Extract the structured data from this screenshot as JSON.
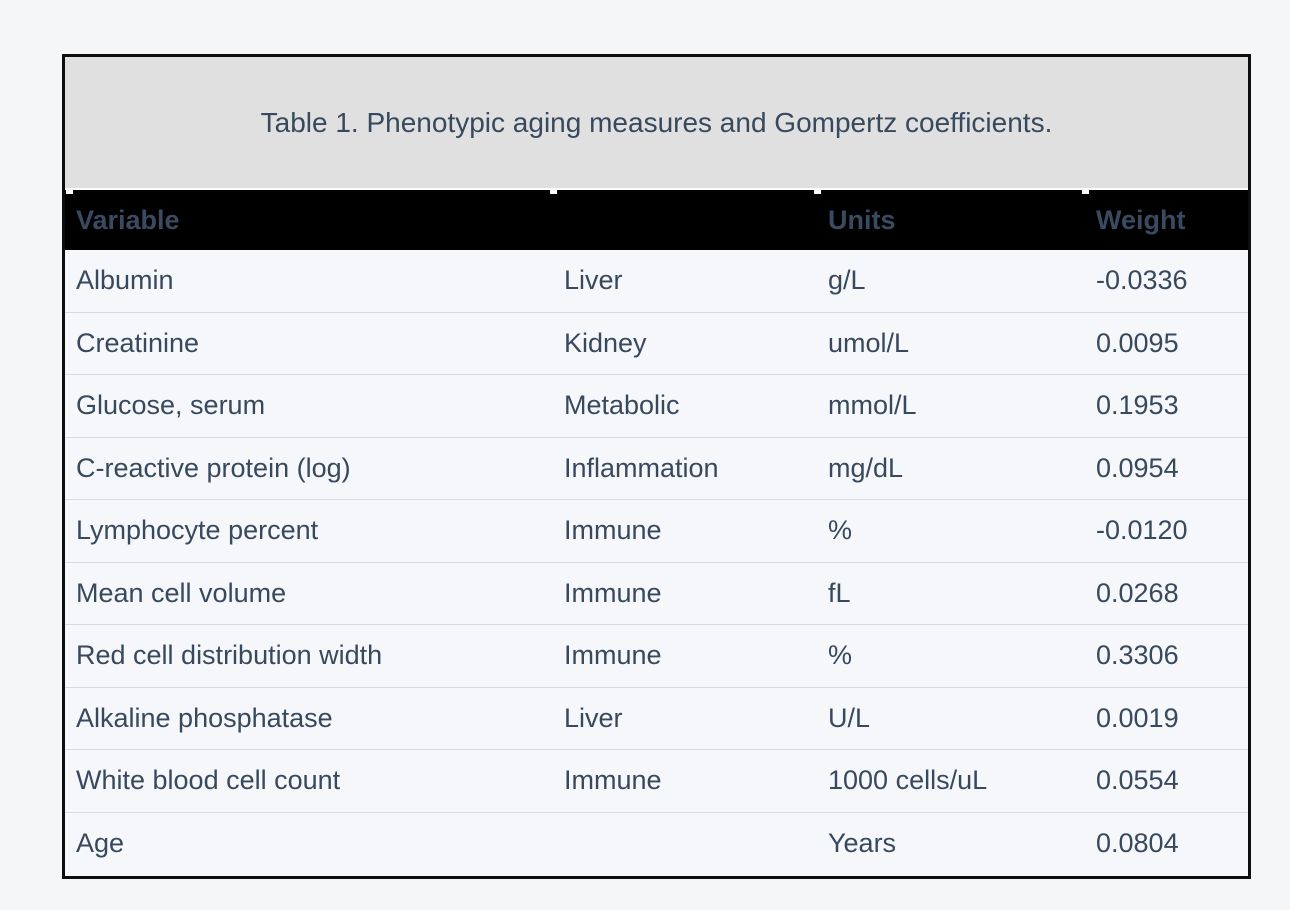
{
  "page": {
    "background": "#f5f6f8"
  },
  "table": {
    "title": "Table 1. Phenotypic aging measures and Gompertz coefficients.",
    "colors": {
      "title_bg": "#e0e0e0",
      "header_bg": "#000000",
      "header_text": "#3a4b61",
      "body_text": "#38495e",
      "row_bg": "#f5f7fa",
      "row_divider": "#d9dbde",
      "outer_border": "#0d0d0d"
    },
    "headers": {
      "variable": "Variable",
      "system": "",
      "units": "Units",
      "weight": "Weight"
    },
    "rows": [
      {
        "variable": "Albumin",
        "system": "Liver",
        "units": "g/L",
        "weight": "-0.0336"
      },
      {
        "variable": "Creatinine",
        "system": "Kidney",
        "units": "umol/L",
        "weight": "0.0095"
      },
      {
        "variable": "Glucose, serum",
        "system": "Metabolic",
        "units": "mmol/L",
        "weight": "0.1953"
      },
      {
        "variable": "C-reactive protein (log)",
        "system": "Inflammation",
        "units": "mg/dL",
        "weight": "0.0954"
      },
      {
        "variable": "Lymphocyte percent",
        "system": "Immune",
        "units": "%",
        "weight": "-0.0120"
      },
      {
        "variable": "Mean cell volume",
        "system": "Immune",
        "units": "fL",
        "weight": "0.0268"
      },
      {
        "variable": "Red cell distribution width",
        "system": "Immune",
        "units": "%",
        "weight": "0.3306"
      },
      {
        "variable": "Alkaline phosphatase",
        "system": "Liver",
        "units": "U/L",
        "weight": "0.0019"
      },
      {
        "variable": "White blood cell count",
        "system": "Immune",
        "units": "1000 cells/uL",
        "weight": "0.0554"
      },
      {
        "variable": "Age",
        "system": "",
        "units": "Years",
        "weight": "0.0804"
      }
    ]
  }
}
